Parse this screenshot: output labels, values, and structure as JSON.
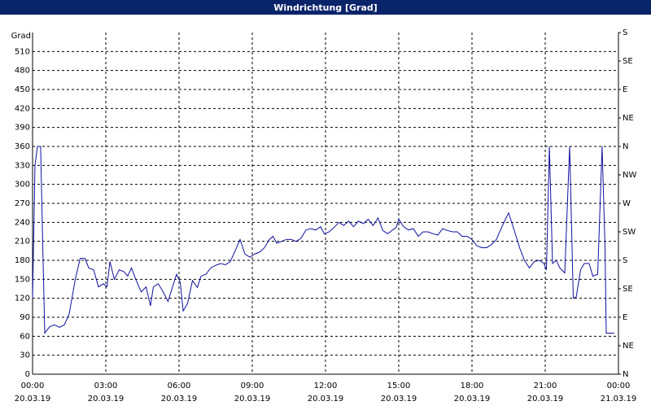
{
  "chart_data": {
    "type": "line",
    "title": "Windrichtung [Grad]",
    "y_label": "Grad",
    "grid": true,
    "xlim": [
      0,
      24
    ],
    "xticks": [
      {
        "value": 0,
        "label": "00:00"
      },
      {
        "value": 3,
        "label": "03:00"
      },
      {
        "value": 6,
        "label": "06:00"
      },
      {
        "value": 9,
        "label": "09:00"
      },
      {
        "value": 12,
        "label": "12:00"
      },
      {
        "value": 15,
        "label": "15:00"
      },
      {
        "value": 18,
        "label": "18:00"
      },
      {
        "value": 21,
        "label": "21:00"
      },
      {
        "value": 24,
        "label": "00:00"
      }
    ],
    "xtick_dates": [
      "20.03.19",
      "20.03.19",
      "20.03.19",
      "20.03.19",
      "20.03.19",
      "20.03.19",
      "20.03.19",
      "20.03.19",
      "21.03.19"
    ],
    "ylim": [
      0,
      540
    ],
    "yticks": [
      0,
      30,
      60,
      90,
      120,
      150,
      180,
      210,
      240,
      270,
      300,
      330,
      360,
      390,
      420,
      450,
      480,
      510
    ],
    "y2lim": [
      0,
      540
    ],
    "y2ticks": [
      {
        "value": 0,
        "label": "N"
      },
      {
        "value": 45,
        "label": "NE"
      },
      {
        "value": 90,
        "label": "E"
      },
      {
        "value": 135,
        "label": "SE"
      },
      {
        "value": 180,
        "label": "S"
      },
      {
        "value": 225,
        "label": "SW"
      },
      {
        "value": 270,
        "label": "W"
      },
      {
        "value": 315,
        "label": "NW"
      },
      {
        "value": 360,
        "label": "N"
      },
      {
        "value": 405,
        "label": "NE"
      },
      {
        "value": 450,
        "label": "E"
      },
      {
        "value": 495,
        "label": "SE"
      },
      {
        "value": 540,
        "label": "S"
      }
    ],
    "x": [
      0,
      0.1,
      0.2,
      0.33,
      0.42,
      0.5,
      0.7,
      0.9,
      1.1,
      1.3,
      1.5,
      1.75,
      1.95,
      2.15,
      2.3,
      2.5,
      2.7,
      2.9,
      3.05,
      3.17,
      3.35,
      3.55,
      3.75,
      3.9,
      4.05,
      4.25,
      4.45,
      4.65,
      4.83,
      4.95,
      5.15,
      5.35,
      5.55,
      5.75,
      5.9,
      6.05,
      6.17,
      6.35,
      6.55,
      6.75,
      6.9,
      7.1,
      7.3,
      7.5,
      7.7,
      7.9,
      8.1,
      8.3,
      8.5,
      8.7,
      8.9,
      9.1,
      9.3,
      9.5,
      9.7,
      9.85,
      10.0,
      10.2,
      10.4,
      10.6,
      10.8,
      11.0,
      11.2,
      11.4,
      11.6,
      11.8,
      11.95,
      12.15,
      12.35,
      12.55,
      12.75,
      12.95,
      13.15,
      13.35,
      13.55,
      13.75,
      13.95,
      14.15,
      14.35,
      14.55,
      14.75,
      14.9,
      15.0,
      15.2,
      15.4,
      15.6,
      15.8,
      16.0,
      16.2,
      16.4,
      16.6,
      16.8,
      17.0,
      17.2,
      17.4,
      17.6,
      17.8,
      18.0,
      18.2,
      18.4,
      18.6,
      18.8,
      19.0,
      19.25,
      19.5,
      19.75,
      19.95,
      20.15,
      20.35,
      20.55,
      20.75,
      20.95,
      21.05,
      21.17,
      21.3,
      21.45,
      21.6,
      21.8,
      22.0,
      22.15,
      22.27,
      22.45,
      22.6,
      22.8,
      22.95,
      23.15,
      23.33,
      23.45,
      23.5,
      23.83
    ],
    "series": [
      {
        "color": "#1010a0",
        "values": [
          120,
          330,
          360,
          360,
          200,
          65,
          75,
          78,
          74,
          78,
          95,
          150,
          183,
          183,
          168,
          165,
          138,
          143,
          138,
          178,
          150,
          165,
          162,
          155,
          168,
          148,
          130,
          138,
          108,
          138,
          143,
          130,
          115,
          140,
          158,
          145,
          100,
          112,
          148,
          137,
          155,
          158,
          168,
          172,
          175,
          173,
          178,
          195,
          213,
          190,
          185,
          190,
          193,
          200,
          213,
          218,
          207,
          210,
          213,
          213,
          210,
          215,
          228,
          230,
          228,
          233,
          222,
          225,
          232,
          240,
          235,
          242,
          233,
          242,
          238,
          245,
          235,
          247,
          227,
          222,
          228,
          232,
          245,
          233,
          228,
          230,
          218,
          225,
          225,
          222,
          220,
          230,
          227,
          225,
          225,
          218,
          218,
          213,
          203,
          200,
          200,
          205,
          213,
          235,
          255,
          225,
          200,
          180,
          168,
          178,
          180,
          175,
          165,
          360,
          175,
          180,
          168,
          160,
          360,
          120,
          122,
          165,
          175,
          175,
          155,
          158,
          360,
          200,
          65,
          65
        ]
      }
    ]
  }
}
